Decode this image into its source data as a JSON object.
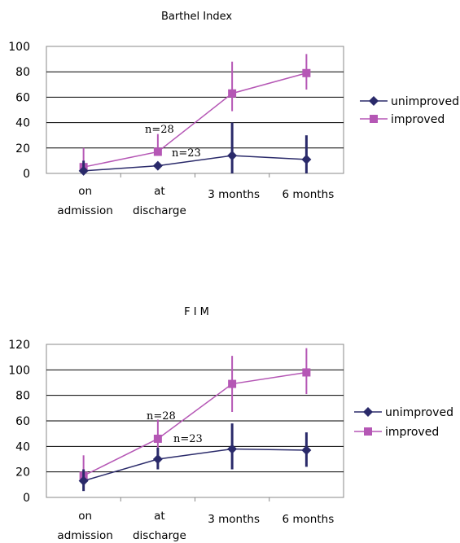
{
  "chart_data": [
    {
      "type": "line",
      "title": "Barthel Index",
      "xlabel": "",
      "ylabel": "",
      "ylim": [
        0,
        100
      ],
      "yticks": [
        "0",
        "20",
        "40",
        "60",
        "80",
        "100"
      ],
      "categories": [
        "on admission",
        "at discharge",
        "3 months",
        "6 months"
      ],
      "grid": true,
      "legend_position": "right",
      "series": [
        {
          "name": "unimproved",
          "color": "#2a2a6a",
          "marker": "diamond",
          "values": [
            2,
            6,
            14,
            11
          ],
          "err_low": [
            0,
            5,
            0,
            0
          ],
          "err_high": [
            10,
            5,
            40,
            30
          ]
        },
        {
          "name": "improved",
          "color": "#b557b5",
          "marker": "square",
          "values": [
            5,
            17,
            63,
            79
          ],
          "err_low": [
            4,
            14,
            49,
            66
          ],
          "err_high": [
            20,
            31,
            88,
            94
          ]
        }
      ],
      "annotations": [
        "n=28",
        "n=23"
      ]
    },
    {
      "type": "line",
      "title": "F I M",
      "xlabel": "",
      "ylabel": "",
      "ylim": [
        0,
        120
      ],
      "yticks": [
        "0",
        "20",
        "40",
        "60",
        "80",
        "100",
        "120"
      ],
      "categories": [
        "on admission",
        "at discharge",
        "3 months",
        "6 months"
      ],
      "grid": true,
      "legend_position": "right",
      "series": [
        {
          "name": "unimproved",
          "color": "#2a2a6a",
          "marker": "diamond",
          "values": [
            13,
            30,
            38,
            37
          ],
          "err_low": [
            5,
            22,
            22,
            24
          ],
          "err_high": [
            22,
            39,
            58,
            51
          ]
        },
        {
          "name": "improved",
          "color": "#b557b5",
          "marker": "square",
          "values": [
            17,
            46,
            89,
            98
          ],
          "err_low": [
            7,
            30,
            67,
            81
          ],
          "err_high": [
            33,
            61,
            111,
            117
          ]
        }
      ],
      "annotations": [
        "n=28",
        "n=23"
      ]
    }
  ]
}
